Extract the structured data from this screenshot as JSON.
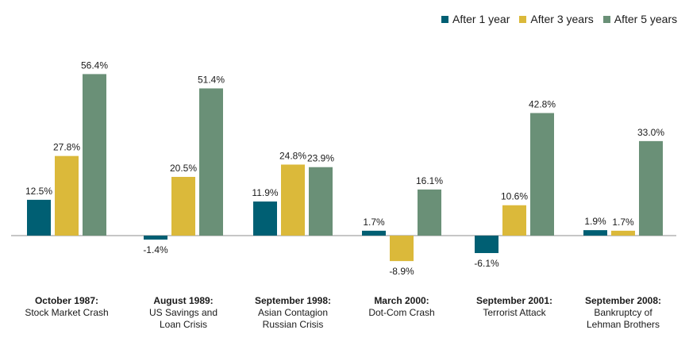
{
  "chart_data": {
    "type": "bar",
    "title": "",
    "xlabel": "",
    "ylabel": "",
    "ylim": [
      -10,
      60
    ],
    "grid": false,
    "legend_position": "top-right",
    "categories": [
      {
        "title": "October 1987:",
        "subtitle": "Stock Market Crash"
      },
      {
        "title": "August 1989:",
        "subtitle": "US Savings and Loan Crisis"
      },
      {
        "title": "September 1998:",
        "subtitle": "Asian Contagion Russian Crisis"
      },
      {
        "title": "March 2000:",
        "subtitle": "Dot-Com Crash"
      },
      {
        "title": "September 2001:",
        "subtitle": "Terrorist Attack"
      },
      {
        "title": "September 2008:",
        "subtitle": "Bankruptcy of Lehman Brothers"
      }
    ],
    "series": [
      {
        "name": "After 1 year",
        "color": "#005f73",
        "values": [
          12.5,
          -1.4,
          11.9,
          1.7,
          -6.1,
          1.9
        ],
        "labels": [
          "12.5%",
          "-1.4%",
          "11.9%",
          "1.7%",
          "-6.1%",
          "1.9%"
        ]
      },
      {
        "name": "After 3 years",
        "color": "#dbb93a",
        "values": [
          27.8,
          20.5,
          24.8,
          -8.9,
          10.6,
          1.7
        ],
        "labels": [
          "27.8%",
          "20.5%",
          "24.8%",
          "-8.9%",
          "10.6%",
          "1.7%"
        ]
      },
      {
        "name": "After 5 years",
        "color": "#6a9077",
        "values": [
          56.4,
          51.4,
          23.9,
          16.1,
          42.8,
          33.0
        ],
        "labels": [
          "56.4%",
          "51.4%",
          "23.9%",
          "16.1%",
          "42.8%",
          "33.0%"
        ]
      }
    ]
  }
}
